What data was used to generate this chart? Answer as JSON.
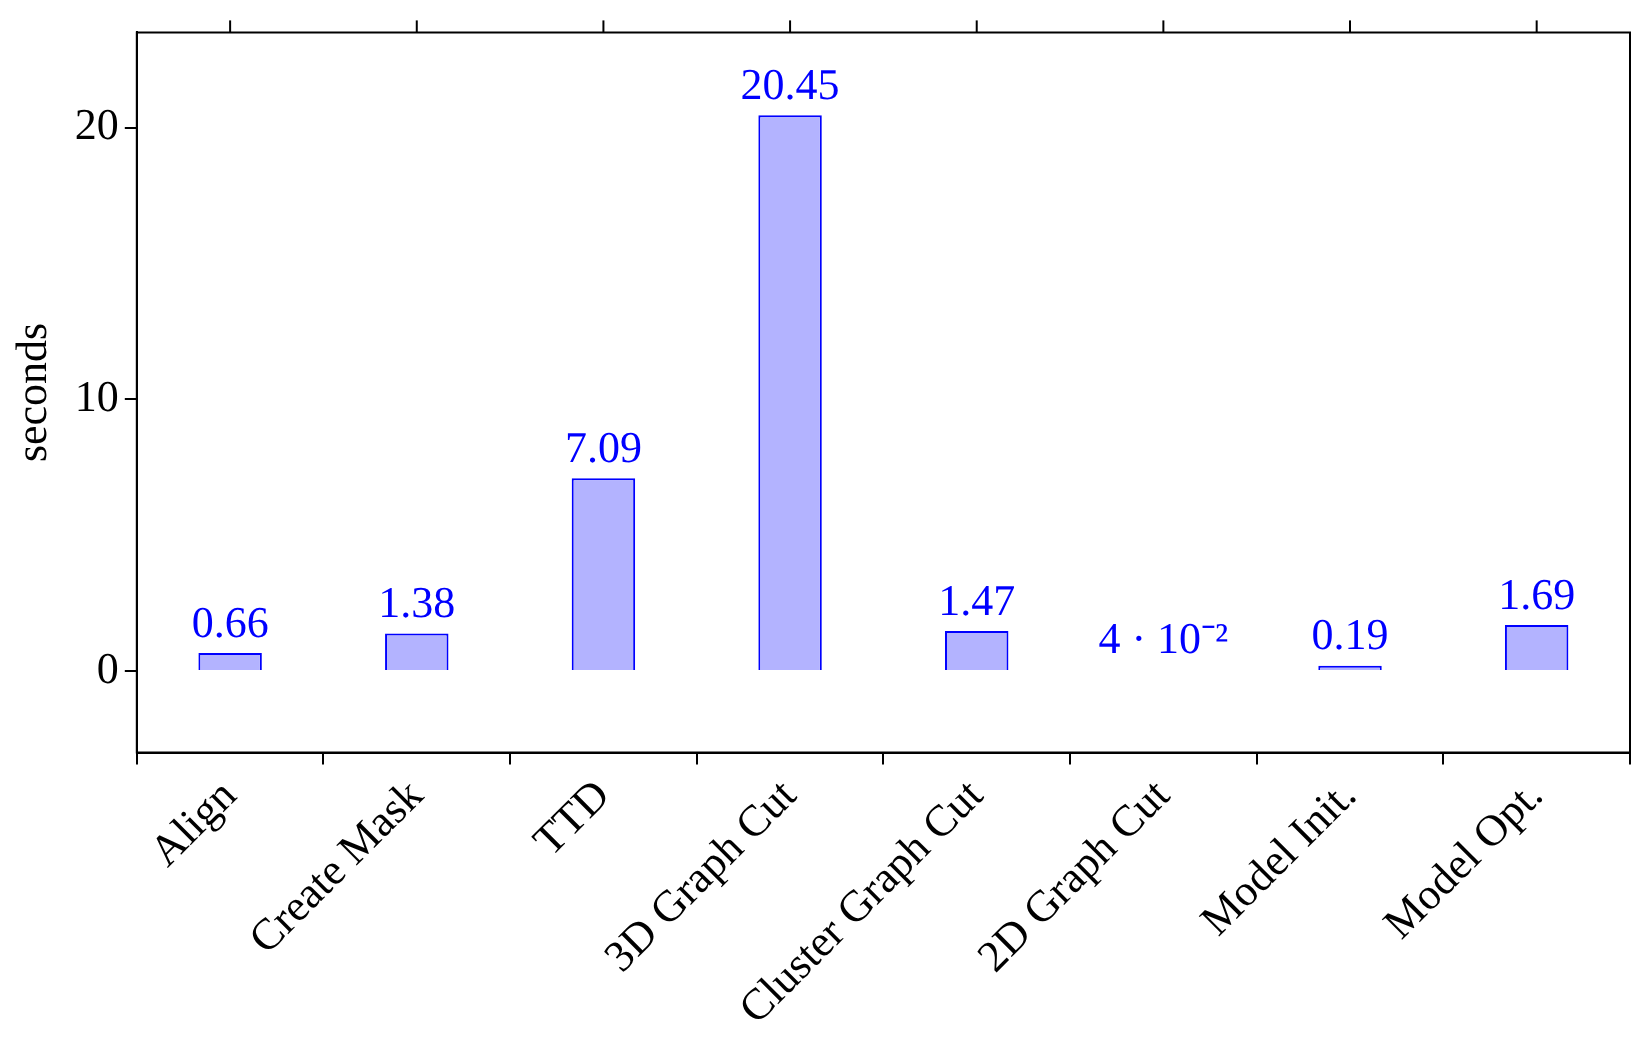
{
  "chart_data": {
    "type": "bar",
    "ylabel": "seconds",
    "categories": [
      "Align",
      "Create Mask",
      "TTD",
      "3D Graph Cut",
      "Cluster Graph Cut",
      "2D Graph Cut",
      "Model Init.",
      "Model Opt."
    ],
    "values": [
      0.66,
      1.38,
      7.09,
      20.45,
      1.47,
      0.04,
      0.19,
      1.69
    ],
    "value_labels": [
      "0.66",
      "1.38",
      "7.09",
      "20.45",
      "1.47",
      "4 · 10⁻²",
      "0.19",
      "1.69"
    ],
    "color": "#b3b3ff",
    "ylim": [
      -3,
      23.5
    ],
    "yticks": [
      0,
      10,
      20
    ],
    "grid": false,
    "legend": false
  }
}
